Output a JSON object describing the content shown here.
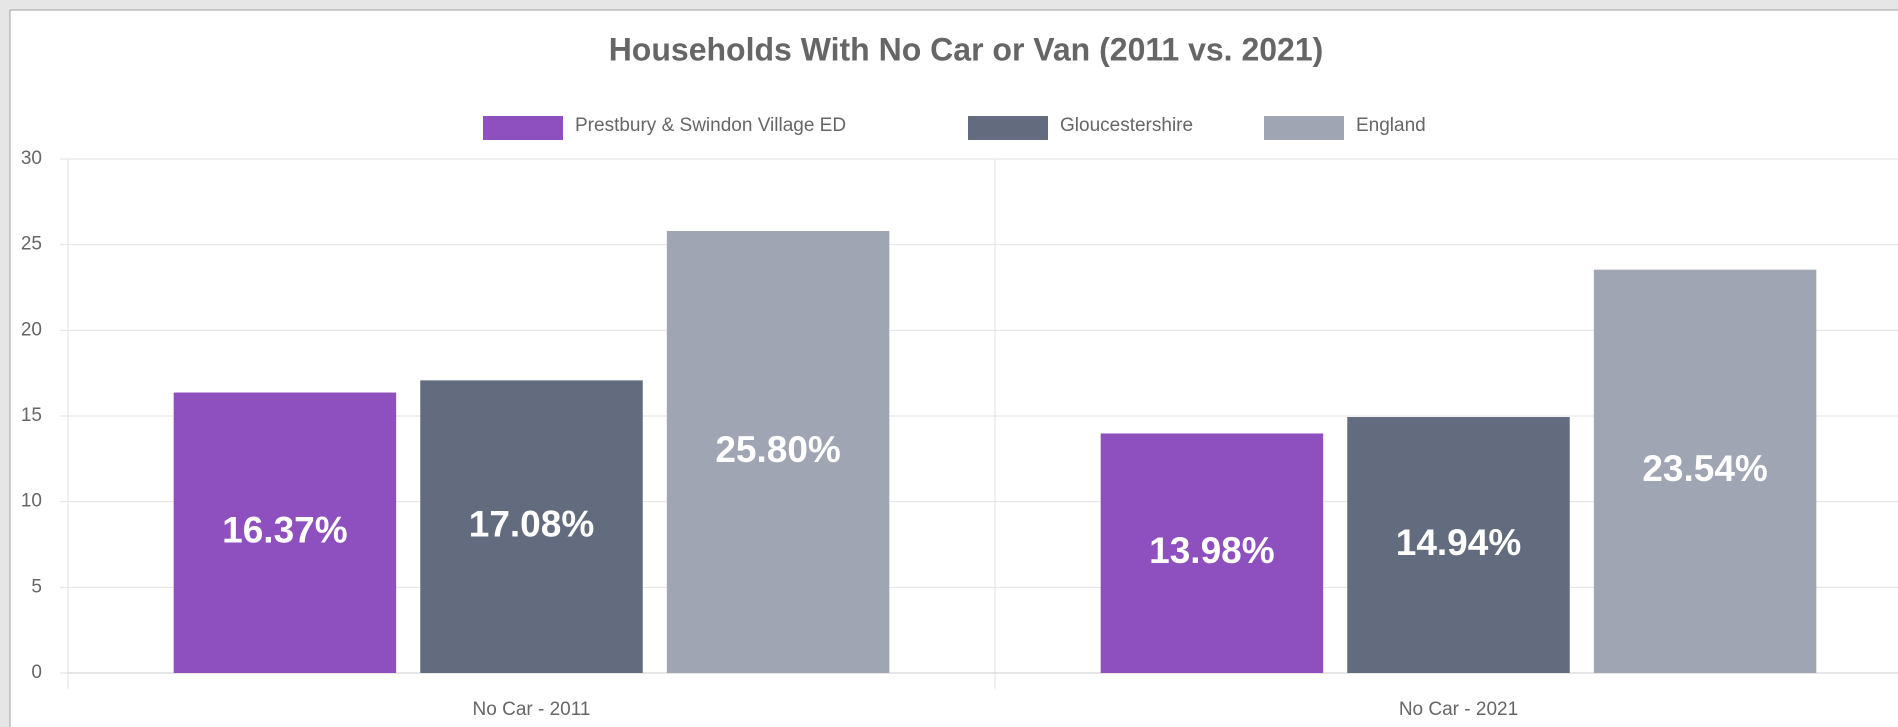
{
  "chart_data": {
    "type": "bar",
    "title": "Households With No Car or Van (2011 vs. 2021)",
    "categories": [
      "No Car - 2011",
      "No Car - 2021"
    ],
    "series": [
      {
        "name": "Prestbury & Swindon Village ED",
        "color": "#8e4fbf",
        "values": [
          16.37,
          13.98
        ],
        "value_labels": [
          "16.37%",
          "13.98%"
        ]
      },
      {
        "name": "Gloucestershire",
        "color": "#626c7e",
        "values": [
          17.08,
          14.94
        ],
        "value_labels": [
          "17.08%",
          "14.94%"
        ]
      },
      {
        "name": "England",
        "color": "#9fa5b2",
        "values": [
          25.8,
          23.54
        ],
        "value_labels": [
          "25.80%",
          "23.54%"
        ]
      }
    ],
    "ylim": [
      0,
      30
    ],
    "yticks": [
      0,
      5,
      10,
      15,
      20,
      25,
      30
    ],
    "grid": true,
    "legend": "top"
  }
}
